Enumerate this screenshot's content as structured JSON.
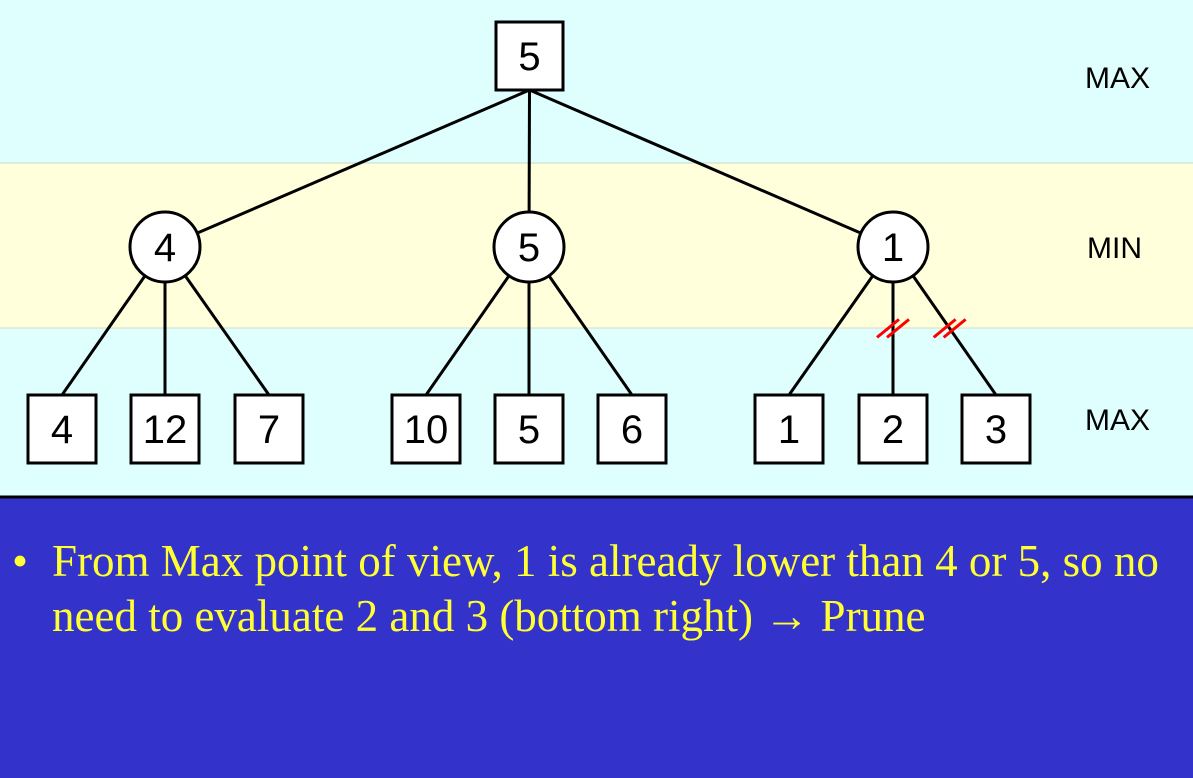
{
  "levels": [
    "MAX",
    "MIN",
    "MAX"
  ],
  "tree": {
    "root": "5",
    "min_nodes": [
      "4",
      "5",
      "1"
    ],
    "leaves": [
      "4",
      "12",
      "7",
      "10",
      "5",
      "6",
      "1",
      "2",
      "3"
    ]
  },
  "pruned_edges": [
    {
      "from_min_index": 2,
      "to_leaf_index": 7
    },
    {
      "from_min_index": 2,
      "to_leaf_index": 8
    }
  ],
  "colors": {
    "max_band": "#dfffff",
    "min_band": "#ffffdc",
    "caption_bg": "#3333cc",
    "caption_text": "#ffff33",
    "prune_mark": "#ff0000"
  },
  "caption": {
    "bullet": "•",
    "text": "From Max point of view, 1 is already lower than 4 or 5, so no need to evaluate 2 and 3 (bottom right) → Prune"
  }
}
